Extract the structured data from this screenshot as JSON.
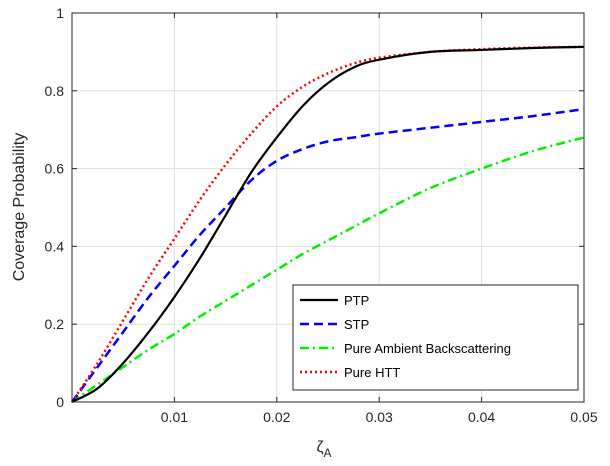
{
  "chart_data": {
    "type": "line",
    "title": "",
    "xlabel": "ζ",
    "xlabel_sub": "A",
    "ylabel": "Coverage Probability",
    "xlim": [
      0,
      0.05
    ],
    "ylim": [
      0,
      1
    ],
    "xticks": [
      0.01,
      0.02,
      0.03,
      0.04,
      0.05
    ],
    "xtick_labels": [
      "0.01",
      "0.02",
      "0.03",
      "0.04",
      "0.05"
    ],
    "yticks": [
      0,
      0.2,
      0.4,
      0.6,
      0.8,
      1
    ],
    "ytick_labels": [
      "0",
      "0.2",
      "0.4",
      "0.6",
      "0.8",
      "1"
    ],
    "grid": true,
    "legend_position": "bottom-right",
    "x": [
      0,
      0.0025,
      0.005,
      0.0075,
      0.01,
      0.0125,
      0.015,
      0.0175,
      0.02,
      0.0225,
      0.025,
      0.0275,
      0.03,
      0.035,
      0.04,
      0.045,
      0.05
    ],
    "series": [
      {
        "name": "PTP",
        "color": "#000000",
        "dash": "solid",
        "values": [
          0,
          0.035,
          0.1,
          0.18,
          0.27,
          0.37,
          0.48,
          0.59,
          0.68,
          0.76,
          0.82,
          0.86,
          0.88,
          0.9,
          0.905,
          0.91,
          0.913
        ]
      },
      {
        "name": "STP",
        "color": "#0000ff",
        "dash": "dashed",
        "values": [
          0,
          0.09,
          0.18,
          0.27,
          0.35,
          0.43,
          0.5,
          0.57,
          0.62,
          0.65,
          0.67,
          0.68,
          0.69,
          0.705,
          0.72,
          0.735,
          0.753
        ]
      },
      {
        "name": "Pure Ambient Backscattering",
        "color": "#00ee00",
        "dash": "dashdot",
        "values": [
          0,
          0.045,
          0.09,
          0.135,
          0.175,
          0.22,
          0.26,
          0.3,
          0.34,
          0.38,
          0.415,
          0.45,
          0.485,
          0.55,
          0.6,
          0.645,
          0.68
        ]
      },
      {
        "name": "Pure HTT",
        "color": "#ff0000",
        "dash": "dotted",
        "values": [
          0,
          0.1,
          0.21,
          0.32,
          0.42,
          0.52,
          0.61,
          0.69,
          0.76,
          0.81,
          0.845,
          0.87,
          0.885,
          0.9,
          0.907,
          0.911,
          0.913
        ]
      }
    ]
  }
}
